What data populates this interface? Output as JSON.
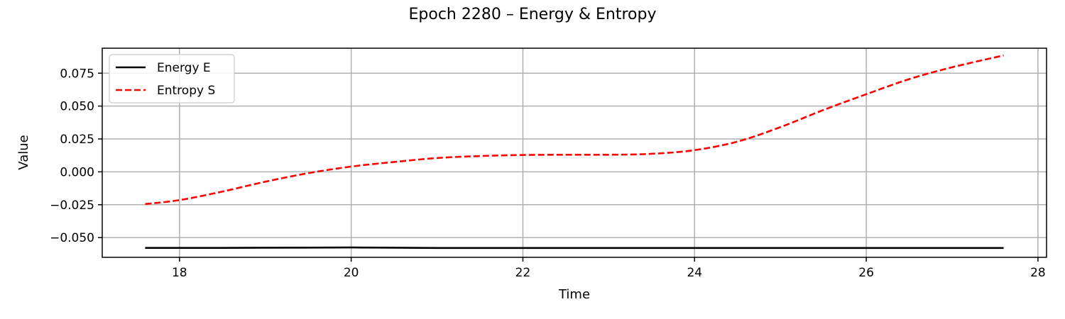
{
  "chart_data": {
    "type": "line",
    "title": "Epoch 2280 – Energy & Entropy",
    "xlabel": "Time",
    "ylabel": "Value",
    "xlim": [
      17.1,
      28.1
    ],
    "ylim": [
      -0.065,
      0.094
    ],
    "xticks": [
      18,
      20,
      22,
      24,
      26,
      28
    ],
    "yticks": [
      -0.05,
      -0.025,
      0.0,
      0.025,
      0.05,
      0.075
    ],
    "ytick_labels": [
      "−0.050",
      "−0.025",
      "0.000",
      "0.025",
      "0.050",
      "0.075"
    ],
    "xtick_labels": [
      "18",
      "20",
      "22",
      "24",
      "26",
      "28"
    ],
    "grid": true,
    "legend_position": "top-left",
    "series": [
      {
        "name": "Energy E",
        "color": "#000000",
        "style": "solid",
        "x": [
          17.6,
          18.0,
          18.5,
          19.0,
          19.5,
          20.0,
          20.5,
          21.0,
          21.5,
          22.0,
          22.5,
          23.0,
          23.5,
          24.0,
          24.5,
          25.0,
          25.5,
          26.0,
          26.5,
          27.0,
          27.6
        ],
        "y": [
          -0.0578,
          -0.0578,
          -0.0578,
          -0.0577,
          -0.0576,
          -0.0575,
          -0.0577,
          -0.0579,
          -0.0579,
          -0.0579,
          -0.0579,
          -0.0579,
          -0.0579,
          -0.0579,
          -0.0579,
          -0.0579,
          -0.0579,
          -0.0579,
          -0.0579,
          -0.0579,
          -0.0579
        ]
      },
      {
        "name": "Entropy S",
        "color": "#ff0000",
        "style": "dashed",
        "x": [
          17.6,
          18.0,
          18.5,
          19.0,
          19.5,
          20.0,
          20.5,
          21.0,
          21.5,
          22.0,
          22.5,
          23.0,
          23.5,
          24.0,
          24.5,
          25.0,
          25.5,
          26.0,
          26.5,
          27.0,
          27.6
        ],
        "y": [
          -0.0245,
          -0.0215,
          -0.015,
          -0.0075,
          -0.001,
          0.004,
          0.0075,
          0.0105,
          0.012,
          0.0128,
          0.013,
          0.013,
          0.0137,
          0.0165,
          0.023,
          0.034,
          0.047,
          0.059,
          0.0705,
          0.0795,
          0.0885
        ]
      }
    ]
  }
}
